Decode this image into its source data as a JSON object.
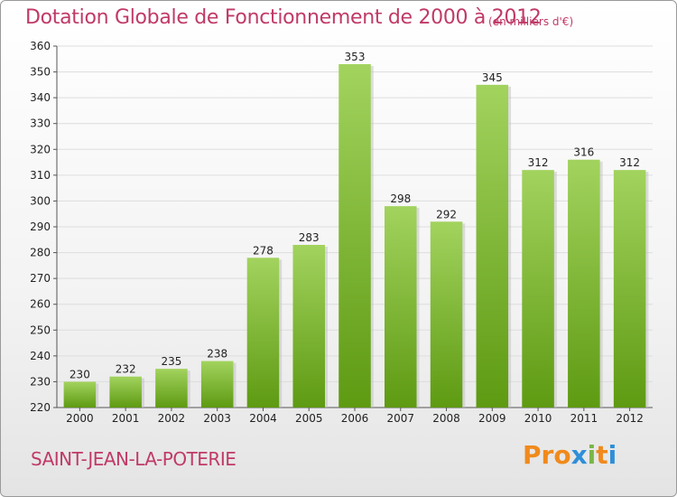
{
  "title": "Dotation Globale de Fonctionnement de 2000 à 2012",
  "unit_note": "(en milliers d'€)",
  "city": "SAINT-JEAN-LA-POTERIE",
  "brand": {
    "letters": [
      "P",
      "r",
      "o",
      "x",
      "i",
      "t",
      "i"
    ],
    "colors": [
      "#f08a1c",
      "#f08a1c",
      "#f08a1c",
      "#2f8fd8",
      "#7ab648",
      "#f08a1c",
      "#2f8fd8"
    ]
  },
  "colors": {
    "bar_top": "#a2d35e",
    "bar_bottom": "#5e9a12",
    "grid": "#dddddd",
    "title": "#c03a66"
  },
  "chart_data": {
    "type": "bar",
    "title": "Dotation Globale de Fonctionnement de 2000 à 2012",
    "unit": "(en milliers d'€)",
    "categories": [
      "2000",
      "2001",
      "2002",
      "2003",
      "2004",
      "2005",
      "2006",
      "2007",
      "2008",
      "2009",
      "2010",
      "2011",
      "2012"
    ],
    "values": [
      230,
      232,
      235,
      238,
      278,
      283,
      353,
      298,
      292,
      345,
      312,
      316,
      312
    ],
    "ylim": [
      220,
      360
    ],
    "yticks": [
      220,
      230,
      240,
      250,
      260,
      270,
      280,
      290,
      300,
      310,
      320,
      330,
      340,
      350,
      360
    ],
    "xlabel": "",
    "ylabel": "",
    "grid": true,
    "data_labels": true
  }
}
